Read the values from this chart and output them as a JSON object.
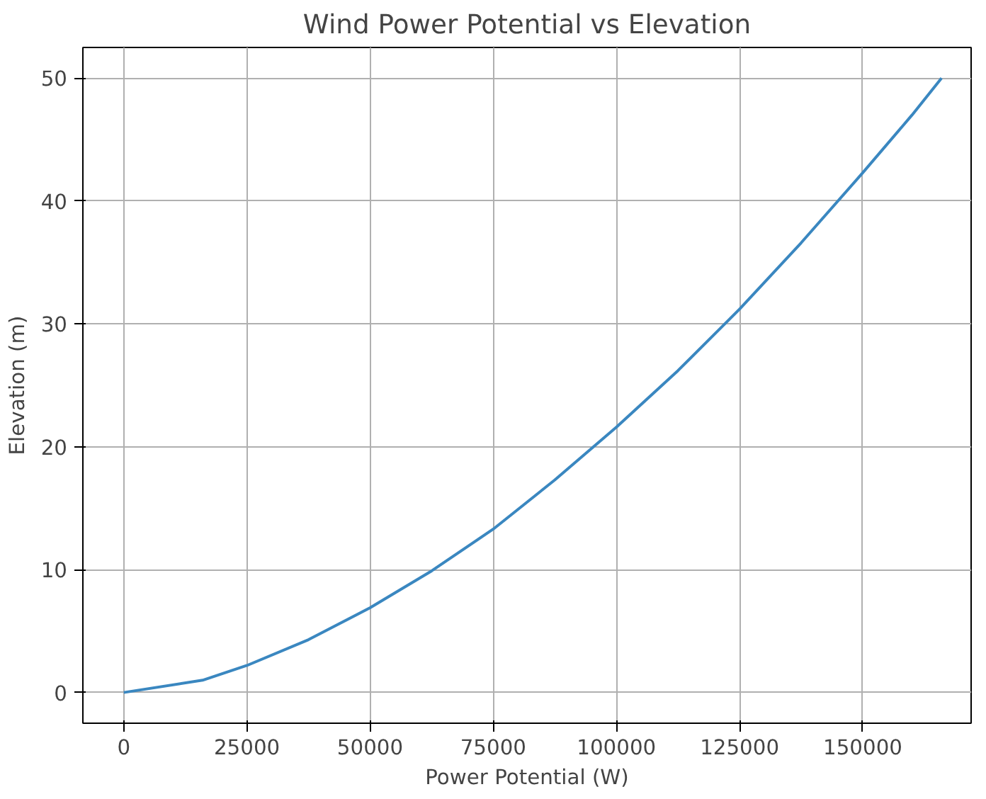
{
  "chart_data": {
    "type": "line",
    "title": "Wind Power Potential vs Elevation",
    "xlabel": "Power Potential (W)",
    "ylabel": "Elevation (m)",
    "x": [
      0,
      16000,
      25000,
      37500,
      50000,
      62500,
      75000,
      87500,
      100000,
      112500,
      125000,
      137500,
      150000,
      160000,
      166000
    ],
    "series": [
      {
        "color": "#3a87c0",
        "values": [
          0,
          1,
          2.2,
          4.3,
          6.9,
          9.9,
          13.3,
          17.3,
          21.6,
          26.2,
          31.2,
          36.6,
          42.3,
          47,
          50
        ]
      }
    ],
    "xlim": [
      -8300,
      172000
    ],
    "ylim": [
      -2.5,
      52.5
    ],
    "xticks": [
      0,
      25000,
      50000,
      75000,
      100000,
      125000,
      150000
    ],
    "yticks": [
      0,
      10,
      20,
      30,
      40,
      50
    ],
    "grid": true,
    "line_style": "solid",
    "marker": "none"
  }
}
